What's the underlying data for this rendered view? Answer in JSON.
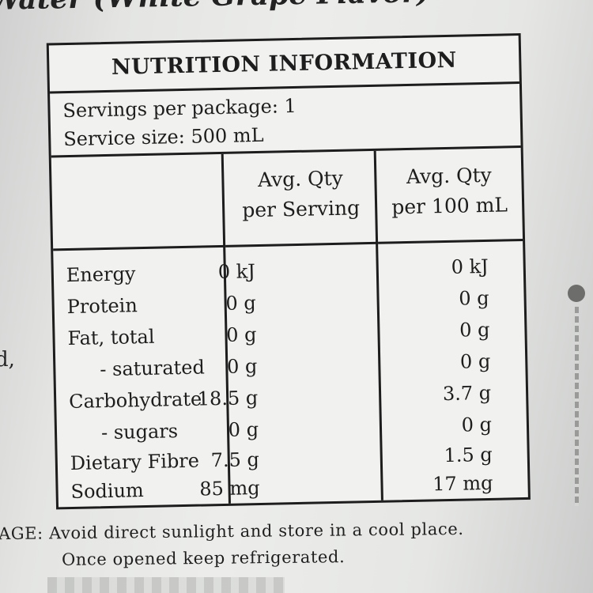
{
  "header": {
    "title_fragment": "Water (White Grape Flavor)"
  },
  "side_fragments": [
    ".",
    "d,"
  ],
  "nutrition": {
    "heading": "NUTRITION INFORMATION",
    "servings_per_package": "Servings per package: 1",
    "serving_size": "Service size: 500 mL",
    "col_serving": {
      "line1": "Avg. Qty",
      "line2": "per Serving"
    },
    "col_100ml": {
      "line1": "Avg. Qty",
      "line2": "per 100 mL"
    },
    "rows": [
      {
        "name": "Energy",
        "per_serving": "0 kJ",
        "per_100ml": "0 kJ"
      },
      {
        "name": "Protein",
        "per_serving": "0 g",
        "per_100ml": "0 g"
      },
      {
        "name": "Fat, total",
        "per_serving": "0 g",
        "per_100ml": "0 g"
      },
      {
        "name": "- saturated",
        "per_serving": "0 g",
        "per_100ml": "0 g"
      },
      {
        "name": "Carbohydrate",
        "per_serving": "18.5 g",
        "per_100ml": "3.7 g"
      },
      {
        "name": "- sugars",
        "per_serving": "0 g",
        "per_100ml": "0 g"
      },
      {
        "name": "Dietary Fibre",
        "per_serving": "7.5 g",
        "per_100ml": "1.5 g"
      },
      {
        "name": "Sodium",
        "per_serving": "85 mg",
        "per_100ml": "17 mg"
      }
    ]
  },
  "storage": {
    "line1": "AGE: Avoid direct sunlight and store in a cool place.",
    "line2": "Once opened keep refrigerated."
  }
}
